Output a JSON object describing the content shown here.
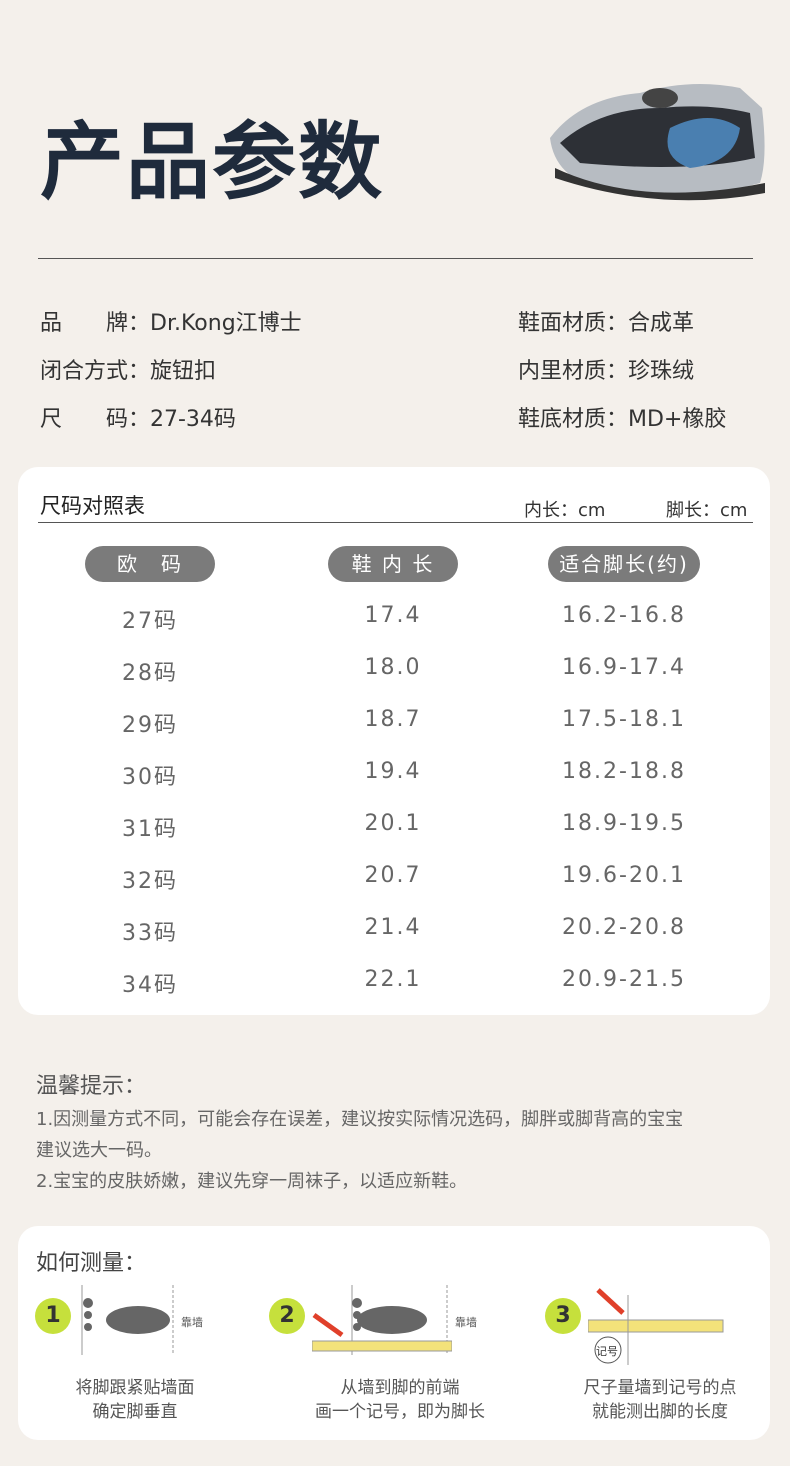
{
  "header": {
    "title": "产品参数"
  },
  "specs": {
    "left": [
      "品　　牌：Dr.Kong江博士",
      "闭合方式：旋钮扣",
      "尺　　码：27-34码"
    ],
    "right": [
      "鞋面材质：合成革",
      "内里材质：珍珠绒",
      "鞋底材质：MD+橡胶"
    ]
  },
  "size_table": {
    "title": "尺码对照表",
    "units": [
      "内长：cm",
      "脚长：cm"
    ],
    "headers": [
      "欧　码",
      "鞋 内 长",
      "适合脚长(约)"
    ],
    "rows": [
      [
        "27码",
        "17.4",
        "16.2-16.8"
      ],
      [
        "28码",
        "18.0",
        "16.9-17.4"
      ],
      [
        "29码",
        "18.7",
        "17.5-18.1"
      ],
      [
        "30码",
        "19.4",
        "18.2-18.8"
      ],
      [
        "31码",
        "20.1",
        "18.9-19.5"
      ],
      [
        "32码",
        "20.7",
        "19.6-20.1"
      ],
      [
        "33码",
        "21.4",
        "20.2-20.8"
      ],
      [
        "34码",
        "22.1",
        "20.9-21.5"
      ]
    ]
  },
  "tips": {
    "title": "温馨提示：",
    "items": [
      "1.因测量方式不同，可能会存在误差，建议按实际情况选码，脚胖或脚背高的宝宝",
      "建议选大一码。",
      "2.宝宝的皮肤娇嫩，建议先穿一周袜子，以适应新鞋。"
    ]
  },
  "measure": {
    "title": "如何测量：",
    "steps": [
      {
        "number": "1",
        "wall": "靠墙",
        "caption": [
          "将脚跟紧贴墙面",
          "确定脚垂直"
        ]
      },
      {
        "number": "2",
        "wall": "靠墙",
        "caption": [
          "从墙到脚的前端",
          "画一个记号，即为脚长"
        ]
      },
      {
        "number": "3",
        "mark": "记号",
        "caption": [
          "尺子量墙到记号的点",
          "就能测出脚的长度"
        ]
      }
    ]
  }
}
